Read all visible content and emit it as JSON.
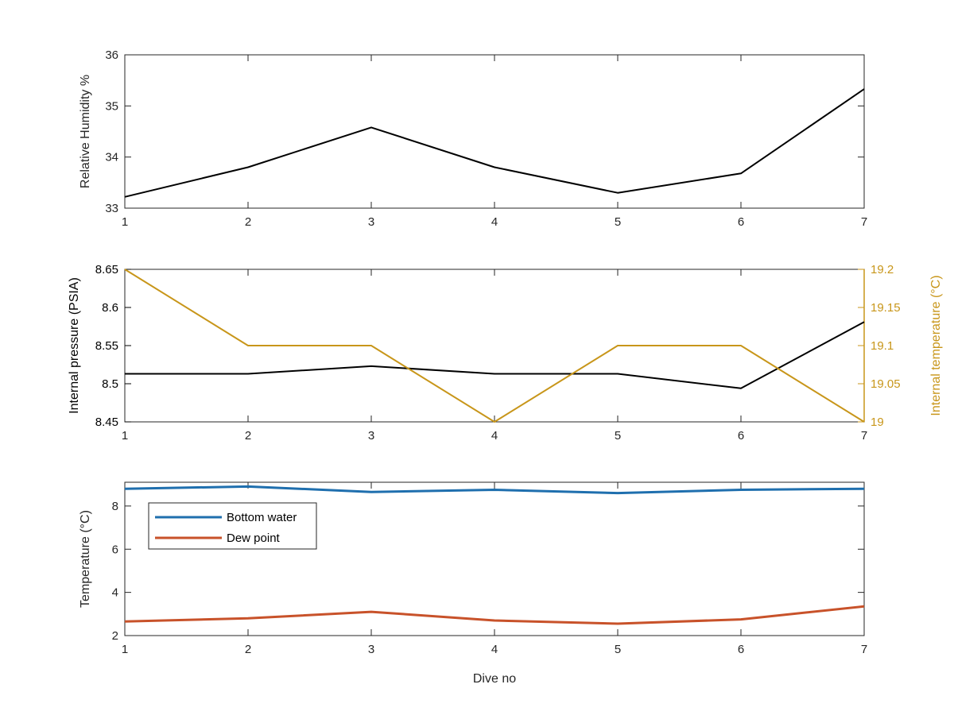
{
  "colors": {
    "black_series": "#000000",
    "orange_axis": "#c8961a",
    "blue_series": "#1f6fae",
    "red_series": "#c8522a",
    "axis": "#262626"
  },
  "chart_data": [
    {
      "type": "line",
      "x": [
        1,
        2,
        3,
        4,
        5,
        6,
        7
      ],
      "series": [
        {
          "values": [
            33.22,
            33.8,
            34.58,
            33.8,
            33.3,
            33.68,
            35.33
          ]
        }
      ],
      "xlabel": "",
      "ylabel": "Relative Humidity %",
      "xlim": [
        1,
        7
      ],
      "ylim": [
        33,
        36
      ],
      "xticks": [
        "1",
        "2",
        "3",
        "4",
        "5",
        "6",
        "7"
      ],
      "yticks": [
        "33",
        "34",
        "35",
        "36"
      ],
      "grid": false
    },
    {
      "type": "line",
      "x": [
        1,
        2,
        3,
        4,
        5,
        6,
        7
      ],
      "series": [
        {
          "axis": "left",
          "values": [
            8.513,
            8.513,
            8.523,
            8.513,
            8.513,
            8.494,
            8.581
          ]
        },
        {
          "axis": "right",
          "values": [
            19.2,
            19.1,
            19.1,
            19.0,
            19.1,
            19.1,
            19.0
          ]
        }
      ],
      "xlabel": "",
      "ylabel": "Internal pressure (PSIA)",
      "ylabel_right": "Internal temperature (°C)",
      "xlim": [
        1,
        7
      ],
      "ylim": [
        8.45,
        8.65
      ],
      "ylim_right": [
        19.0,
        19.2
      ],
      "xticks": [
        "1",
        "2",
        "3",
        "4",
        "5",
        "6",
        "7"
      ],
      "yticks": [
        "8.45",
        "8.5",
        "8.55",
        "8.6",
        "8.65"
      ],
      "yticks_right": [
        "19",
        "19.05",
        "19.1",
        "19.15",
        "19.2"
      ],
      "grid": false
    },
    {
      "type": "line",
      "x": [
        1,
        2,
        3,
        4,
        5,
        6,
        7
      ],
      "series": [
        {
          "name": "Bottom water",
          "values": [
            8.8,
            8.9,
            8.65,
            8.75,
            8.6,
            8.75,
            8.8
          ]
        },
        {
          "name": "Dew point",
          "values": [
            2.65,
            2.8,
            3.1,
            2.7,
            2.55,
            2.75,
            3.35
          ]
        }
      ],
      "xlabel": "Dive no",
      "ylabel": "Temperature (°C)",
      "xlim": [
        1,
        7
      ],
      "ylim": [
        2,
        9.1
      ],
      "xticks": [
        "1",
        "2",
        "3",
        "4",
        "5",
        "6",
        "7"
      ],
      "yticks": [
        "2",
        "4",
        "6",
        "8"
      ],
      "legend_position": "top-left",
      "grid": false
    }
  ]
}
